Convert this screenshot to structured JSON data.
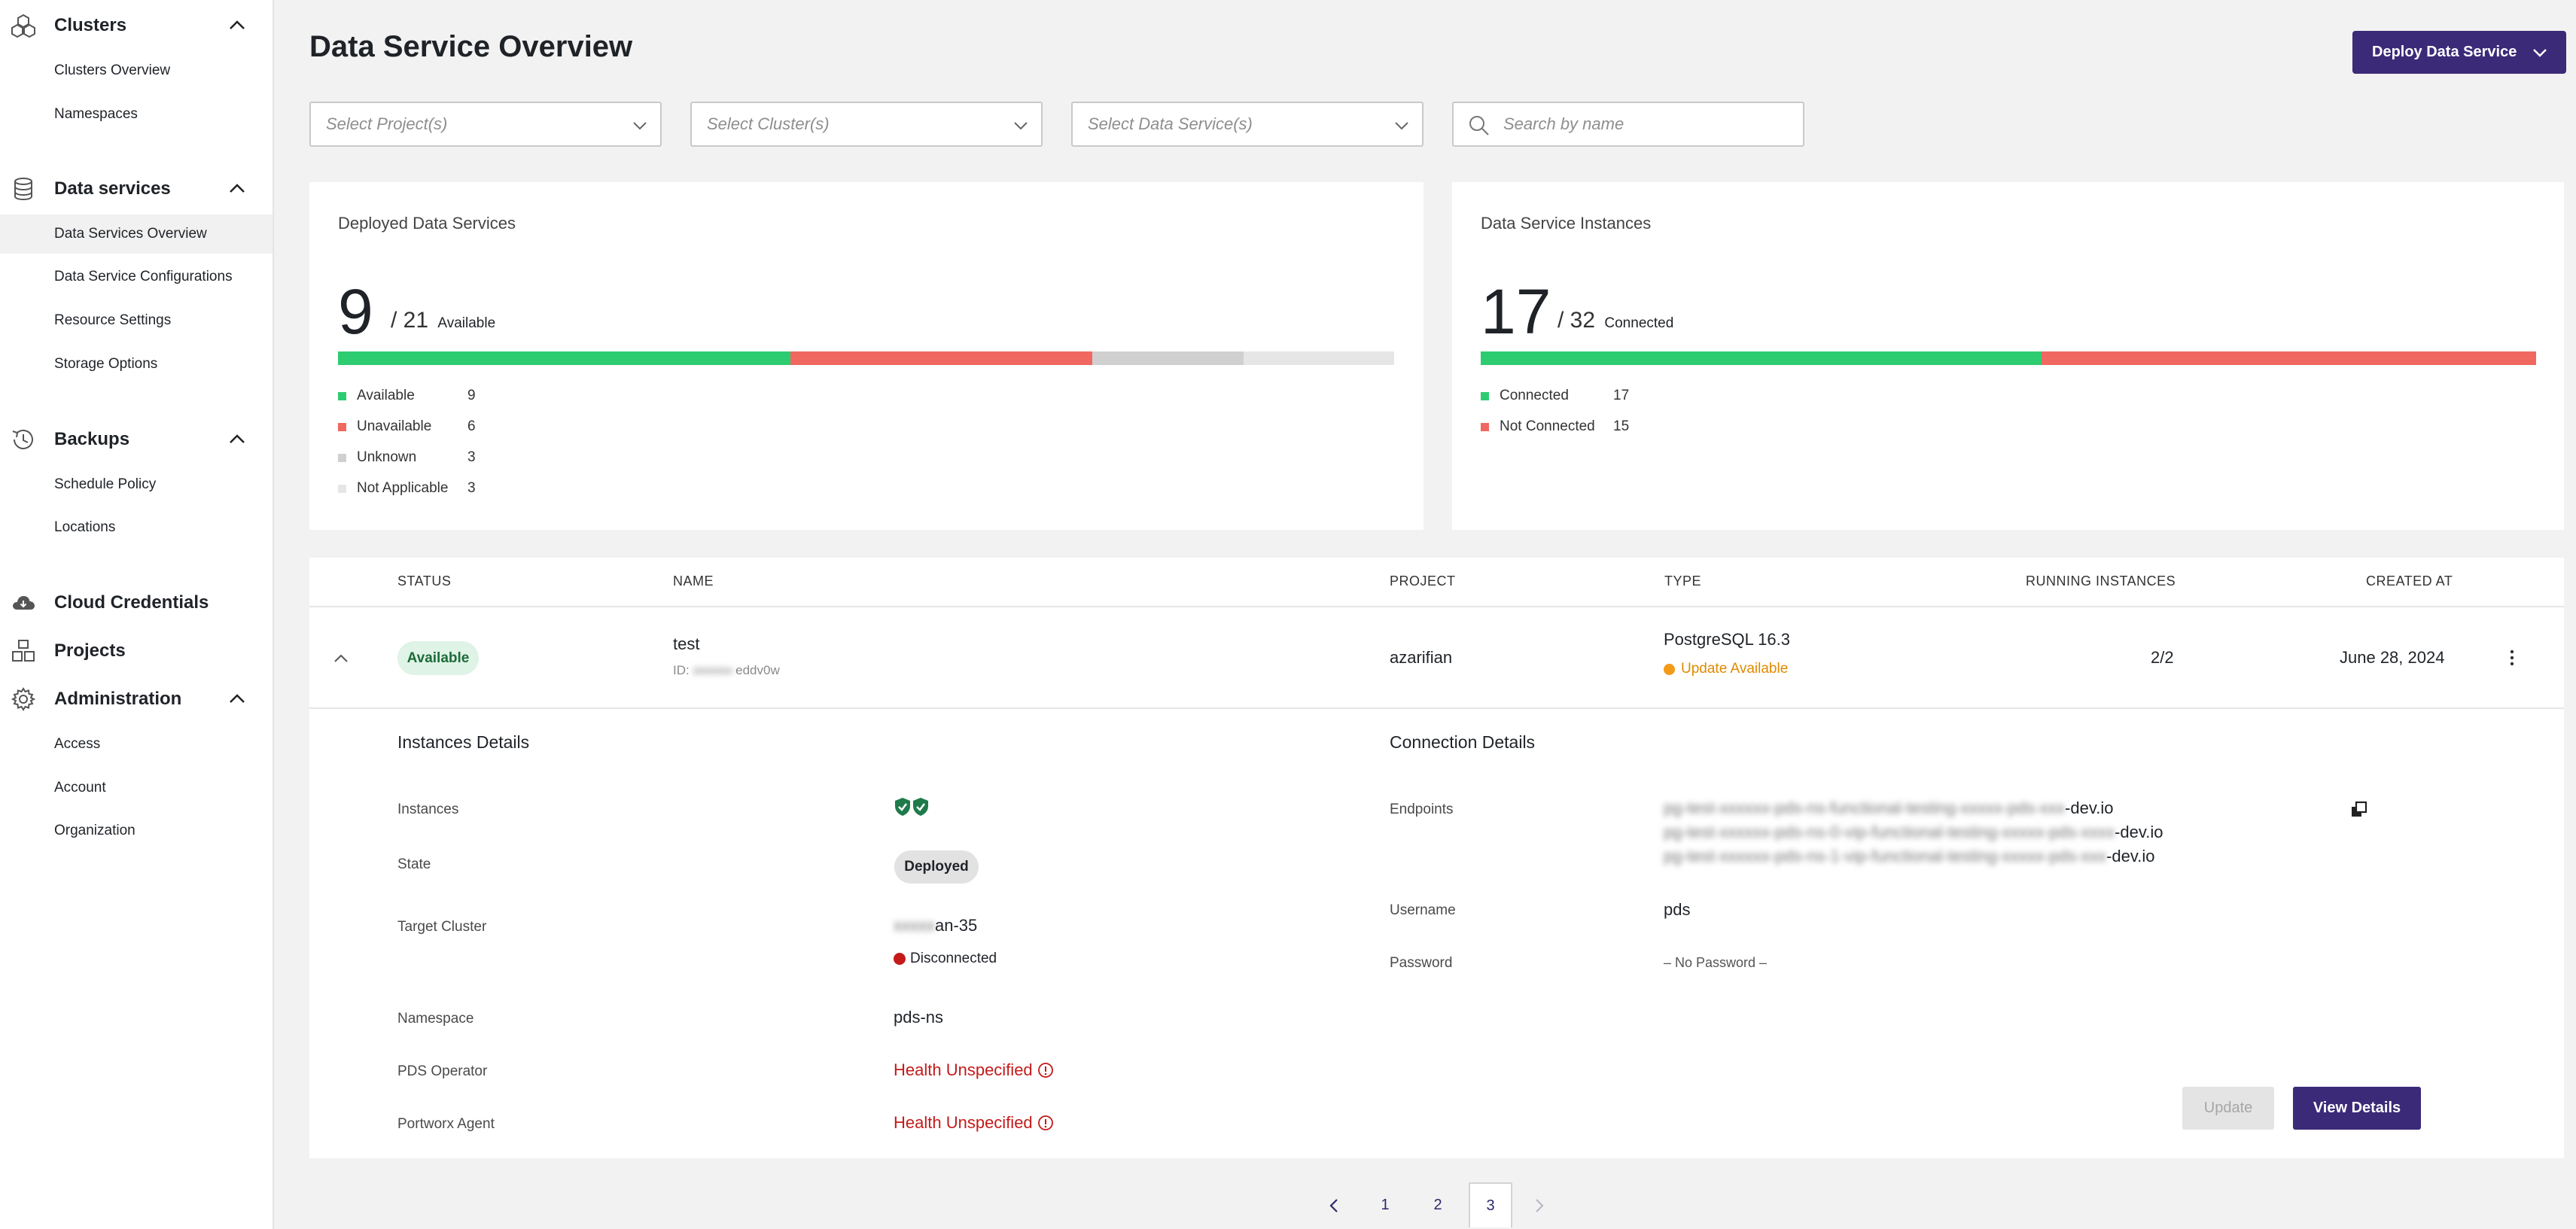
{
  "sidebar": {
    "clusters": {
      "label": "Clusters",
      "items": [
        "Clusters Overview",
        "Namespaces"
      ]
    },
    "data_services": {
      "label": "Data services",
      "items": [
        "Data Services Overview",
        "Data Service Configurations",
        "Resource Settings",
        "Storage Options"
      ]
    },
    "backups": {
      "label": "Backups",
      "items": [
        "Schedule Policy",
        "Locations"
      ]
    },
    "cloud_credentials": {
      "label": "Cloud Credentials"
    },
    "projects": {
      "label": "Projects"
    },
    "administration": {
      "label": "Administration",
      "items": [
        "Access",
        "Account",
        "Organization"
      ]
    },
    "active_item": "Data Services Overview"
  },
  "header": {
    "title": "Data Service Overview",
    "deploy_button": "Deploy Data Service"
  },
  "filters": {
    "project_placeholder": "Select Project(s)",
    "cluster_placeholder": "Select Cluster(s)",
    "service_placeholder": "Select Data Service(s)",
    "search_placeholder": "Search by name"
  },
  "deployed_card": {
    "title": "Deployed Data Services",
    "count": "9",
    "total": "/ 21",
    "caption": "Available",
    "segments": [
      {
        "label": "Available",
        "value": 9,
        "color": "#2ecc71"
      },
      {
        "label": "Unavailable",
        "value": 6,
        "color": "#f0685f"
      },
      {
        "label": "Unknown",
        "value": 3,
        "color": "#d0d0d0"
      },
      {
        "label": "Not Applicable",
        "value": 3,
        "color": "#e6e6e6"
      }
    ],
    "legend": {
      "available": {
        "label": "Available",
        "value": "9"
      },
      "unavailable": {
        "label": "Unavailable",
        "value": "6"
      },
      "unknown": {
        "label": "Unknown",
        "value": "3"
      },
      "not_applicable": {
        "label": "Not Applicable",
        "value": "3"
      }
    }
  },
  "instances_card": {
    "title": "Data Service Instances",
    "count": "17",
    "total": "/ 32",
    "caption": "Connected",
    "segments": [
      {
        "label": "Connected",
        "value": 17,
        "color": "#2ecc71"
      },
      {
        "label": "Not Connected",
        "value": 15,
        "color": "#f0685f"
      }
    ],
    "legend": {
      "connected": {
        "label": "Connected",
        "value": "17"
      },
      "not_connected": {
        "label": "Not Connected",
        "value": "15"
      }
    }
  },
  "table": {
    "headers": {
      "status": "STATUS",
      "name": "NAME",
      "project": "PROJECT",
      "type": "TYPE",
      "running": "RUNNING INSTANCES",
      "created": "CREATED AT"
    },
    "row": {
      "status": "Available",
      "name": "test",
      "id_prefix": "ID:",
      "id_blur": "xxxxxx-",
      "id_suffix": "eddv0w",
      "project": "azarifian",
      "type": "PostgreSQL 16.3",
      "type_note": "Update Available",
      "running": "2/2",
      "created": "June 28, 2024"
    },
    "details": {
      "instances_title": "Instances Details",
      "connection_title": "Connection Details",
      "instances_label": "Instances",
      "state_label": "State",
      "state_value": "Deployed",
      "target_cluster_label": "Target Cluster",
      "target_cluster_blur": "xxxxx",
      "target_cluster_value": "an-35",
      "cluster_status": "Disconnected",
      "namespace_label": "Namespace",
      "namespace_value": "pds-ns",
      "operator_label": "PDS Operator",
      "operator_value": "Health Unspecified",
      "agent_label": "Portworx Agent",
      "agent_value": "Health Unspecified",
      "endpoints_label": "Endpoints",
      "endpoints": [
        {
          "blur": "pg-test-xxxxxx-pds-ns-functional-testing-xxxxx-pds-xxx",
          "suffix": "-dev.io"
        },
        {
          "blur": "pg-test-xxxxxx-pds-ns-0-vip-functional-testing-xxxxx-pds-xxxx",
          "suffix": "-dev.io"
        },
        {
          "blur": "pg-test-xxxxxx-pds-ns-1-vip-functional-testing-xxxxx-pds-xxx",
          "suffix": "-dev.io"
        }
      ],
      "username_label": "Username",
      "username_value": "pds",
      "password_label": "Password",
      "password_value": "– No Password –",
      "update_button": "Update",
      "view_button": "View Details"
    }
  },
  "pagination": {
    "pages": [
      "1",
      "2",
      "3"
    ],
    "current": "3"
  }
}
